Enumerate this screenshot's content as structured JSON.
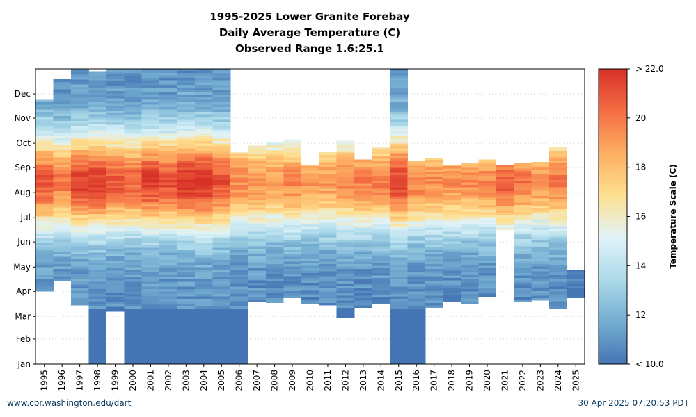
{
  "chart_data": {
    "type": "heatmap",
    "title_lines": [
      "1995-2025 Lower Granite Forebay",
      "Daily Average Temperature (C)",
      "Observed Range 1.6:25.1"
    ],
    "x_tick_labels": [
      "1995",
      "1996",
      "1997",
      "1998",
      "1999",
      "2000",
      "2001",
      "2002",
      "2003",
      "2004",
      "2005",
      "2006",
      "2007",
      "2008",
      "2009",
      "2010",
      "2011",
      "2012",
      "2013",
      "2014",
      "2015",
      "2016",
      "2017",
      "2018",
      "2019",
      "2020",
      "2021",
      "2022",
      "2023",
      "2024",
      "2025"
    ],
    "y_tick_labels": [
      "Jan",
      "Feb",
      "Mar",
      "Apr",
      "May",
      "Jun",
      "Jul",
      "Aug",
      "Sep",
      "Oct",
      "Nov",
      "Dec"
    ],
    "y_tick_days": [
      0,
      31,
      59,
      90,
      120,
      151,
      181,
      212,
      243,
      273,
      304,
      334
    ],
    "y_range_days": [
      0,
      365
    ],
    "grid": "dotted horizontal",
    "colorbar": {
      "label": "Temperature Scale (C)",
      "ticks": [
        "< 10.0",
        "12",
        "14",
        "16",
        "18",
        "20",
        "> 22.0"
      ],
      "tick_values": [
        10,
        12,
        14,
        16,
        18,
        20,
        22
      ],
      "min": 10,
      "max": 22,
      "colors": [
        "#4575b4",
        "#74add1",
        "#abd9e9",
        "#e0f3f8",
        "#fee090",
        "#fdae61",
        "#f46d43",
        "#d73027"
      ]
    },
    "columns": [
      {
        "year": "1995",
        "start": 90,
        "end": 327,
        "peak": 20.8
      },
      {
        "year": "1996",
        "start": 103,
        "end": 352,
        "peak": 19.8
      },
      {
        "year": "1997",
        "start": 73,
        "end": 365,
        "peak": 21.5
      },
      {
        "year": "1998",
        "start": 0,
        "end": 362,
        "peak": 21.8
      },
      {
        "year": "1999",
        "start": 65,
        "end": 365,
        "peak": 20.8
      },
      {
        "year": "2000",
        "start": 0,
        "end": 365,
        "peak": 20.5
      },
      {
        "year": "2001",
        "start": 0,
        "end": 365,
        "peak": 21.5
      },
      {
        "year": "2002",
        "start": 0,
        "end": 365,
        "peak": 21.0
      },
      {
        "year": "2003",
        "start": 0,
        "end": 365,
        "peak": 22.0
      },
      {
        "year": "2004",
        "start": 0,
        "end": 365,
        "peak": 22.0
      },
      {
        "year": "2005",
        "start": 0,
        "end": 365,
        "peak": 21.0
      },
      {
        "year": "2006",
        "start": 0,
        "end": 262,
        "peak": 19.5
      },
      {
        "year": "2007",
        "start": 77,
        "end": 270,
        "peak": 19.3
      },
      {
        "year": "2008",
        "start": 76,
        "end": 275,
        "peak": 19.0
      },
      {
        "year": "2009",
        "start": 82,
        "end": 278,
        "peak": 19.5
      },
      {
        "year": "2010",
        "start": 74,
        "end": 246,
        "peak": 19.0
      },
      {
        "year": "2011",
        "start": 73,
        "end": 263,
        "peak": 19.0
      },
      {
        "year": "2012",
        "start": 58,
        "end": 276,
        "peak": 19.5
      },
      {
        "year": "2013",
        "start": 70,
        "end": 253,
        "peak": 19.8
      },
      {
        "year": "2014",
        "start": 74,
        "end": 268,
        "peak": 19.8
      },
      {
        "year": "2015",
        "start": 0,
        "end": 365,
        "peak": 21.5
      },
      {
        "year": "2016",
        "start": 0,
        "end": 251,
        "peak": 19.8
      },
      {
        "year": "2017",
        "start": 70,
        "end": 255,
        "peak": 19.5
      },
      {
        "year": "2018",
        "start": 77,
        "end": 246,
        "peak": 19.3
      },
      {
        "year": "2019",
        "start": 75,
        "end": 248,
        "peak": 19.3
      },
      {
        "year": "2020",
        "start": 83,
        "end": 253,
        "peak": 19.5
      },
      {
        "year": "2021",
        "start": 166,
        "end": 246,
        "peak": 20.8
      },
      {
        "year": "2022",
        "start": 77,
        "end": 249,
        "peak": 20.0
      },
      {
        "year": "2023",
        "start": 79,
        "end": 250,
        "peak": 19.3
      },
      {
        "year": "2024",
        "start": 69,
        "end": 268,
        "peak": 20.0
      },
      {
        "year": "2025",
        "start": 82,
        "end": 117,
        "peak": 11.2
      }
    ]
  },
  "footer": {
    "source_link": "www.cbr.washington.edu/dart",
    "generated_timestamp": "30 Apr 2025 07:20:53 PDT"
  }
}
